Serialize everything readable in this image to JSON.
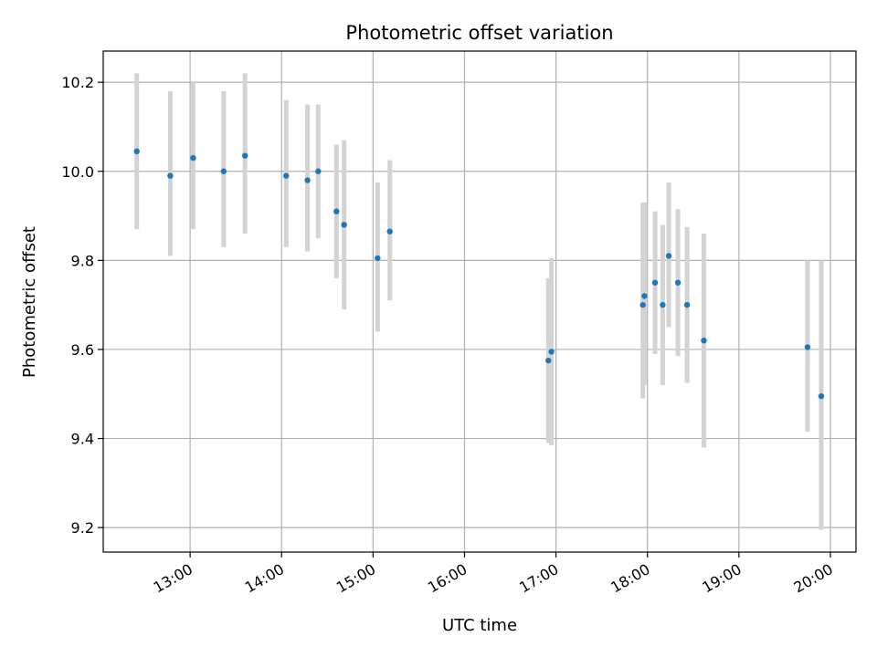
{
  "chart_data": {
    "type": "scatter",
    "title": "Photometric offset variation",
    "xlabel": "UTC time",
    "ylabel": "Photometric offset",
    "x_tick_labels": [
      "13:00",
      "14:00",
      "15:00",
      "16:00",
      "17:00",
      "18:00",
      "19:00",
      "20:00"
    ],
    "x_ticks_hours": [
      13,
      14,
      15,
      16,
      17,
      18,
      19,
      20
    ],
    "y_ticks": [
      9.2,
      9.4,
      9.6,
      9.8,
      10.0,
      10.2
    ],
    "y_tick_labels": [
      "9.2",
      "9.4",
      "9.6",
      "9.8",
      "10.0",
      "10.2"
    ],
    "xlim_hours": [
      12.05,
      20.28
    ],
    "ylim": [
      9.145,
      10.27
    ],
    "grid": true,
    "colors": {
      "point": "#1f77b4",
      "errorbar": "#d3d3d3",
      "grid": "#b0b0b0"
    },
    "series": [
      {
        "points": [
          {
            "t": "12:25",
            "y": 10.045,
            "lo": 9.87,
            "hi": 10.22
          },
          {
            "t": "12:47",
            "y": 9.99,
            "lo": 9.81,
            "hi": 10.18
          },
          {
            "t": "13:02",
            "y": 10.03,
            "lo": 9.87,
            "hi": 10.2
          },
          {
            "t": "13:22",
            "y": 10.0,
            "lo": 9.83,
            "hi": 10.18
          },
          {
            "t": "13:36",
            "y": 10.035,
            "lo": 9.86,
            "hi": 10.22
          },
          {
            "t": "14:03",
            "y": 9.99,
            "lo": 9.83,
            "hi": 10.16
          },
          {
            "t": "14:17",
            "y": 9.98,
            "lo": 9.82,
            "hi": 10.15
          },
          {
            "t": "14:24",
            "y": 10.0,
            "lo": 9.85,
            "hi": 10.15
          },
          {
            "t": "14:36",
            "y": 9.91,
            "lo": 9.76,
            "hi": 10.06
          },
          {
            "t": "14:41",
            "y": 9.88,
            "lo": 9.69,
            "hi": 10.07
          },
          {
            "t": "15:03",
            "y": 9.805,
            "lo": 9.64,
            "hi": 9.975
          },
          {
            "t": "15:11",
            "y": 9.865,
            "lo": 9.71,
            "hi": 10.025
          },
          {
            "t": "16:55",
            "y": 9.575,
            "lo": 9.39,
            "hi": 9.76
          },
          {
            "t": "16:57",
            "y": 9.595,
            "lo": 9.385,
            "hi": 9.805
          },
          {
            "t": "17:57",
            "y": 9.7,
            "lo": 9.49,
            "hi": 9.93
          },
          {
            "t": "17:58",
            "y": 9.72,
            "lo": 9.52,
            "hi": 9.93
          },
          {
            "t": "18:05",
            "y": 9.75,
            "lo": 9.59,
            "hi": 9.91
          },
          {
            "t": "18:10",
            "y": 9.7,
            "lo": 9.52,
            "hi": 9.88
          },
          {
            "t": "18:14",
            "y": 9.81,
            "lo": 9.65,
            "hi": 9.975
          },
          {
            "t": "18:20",
            "y": 9.75,
            "lo": 9.585,
            "hi": 9.915
          },
          {
            "t": "18:26",
            "y": 9.7,
            "lo": 9.525,
            "hi": 9.875
          },
          {
            "t": "18:37",
            "y": 9.62,
            "lo": 9.38,
            "hi": 9.86
          },
          {
            "t": "19:45",
            "y": 9.605,
            "lo": 9.415,
            "hi": 9.8
          },
          {
            "t": "19:54",
            "y": 9.495,
            "lo": 9.195,
            "hi": 9.8
          }
        ]
      }
    ]
  }
}
